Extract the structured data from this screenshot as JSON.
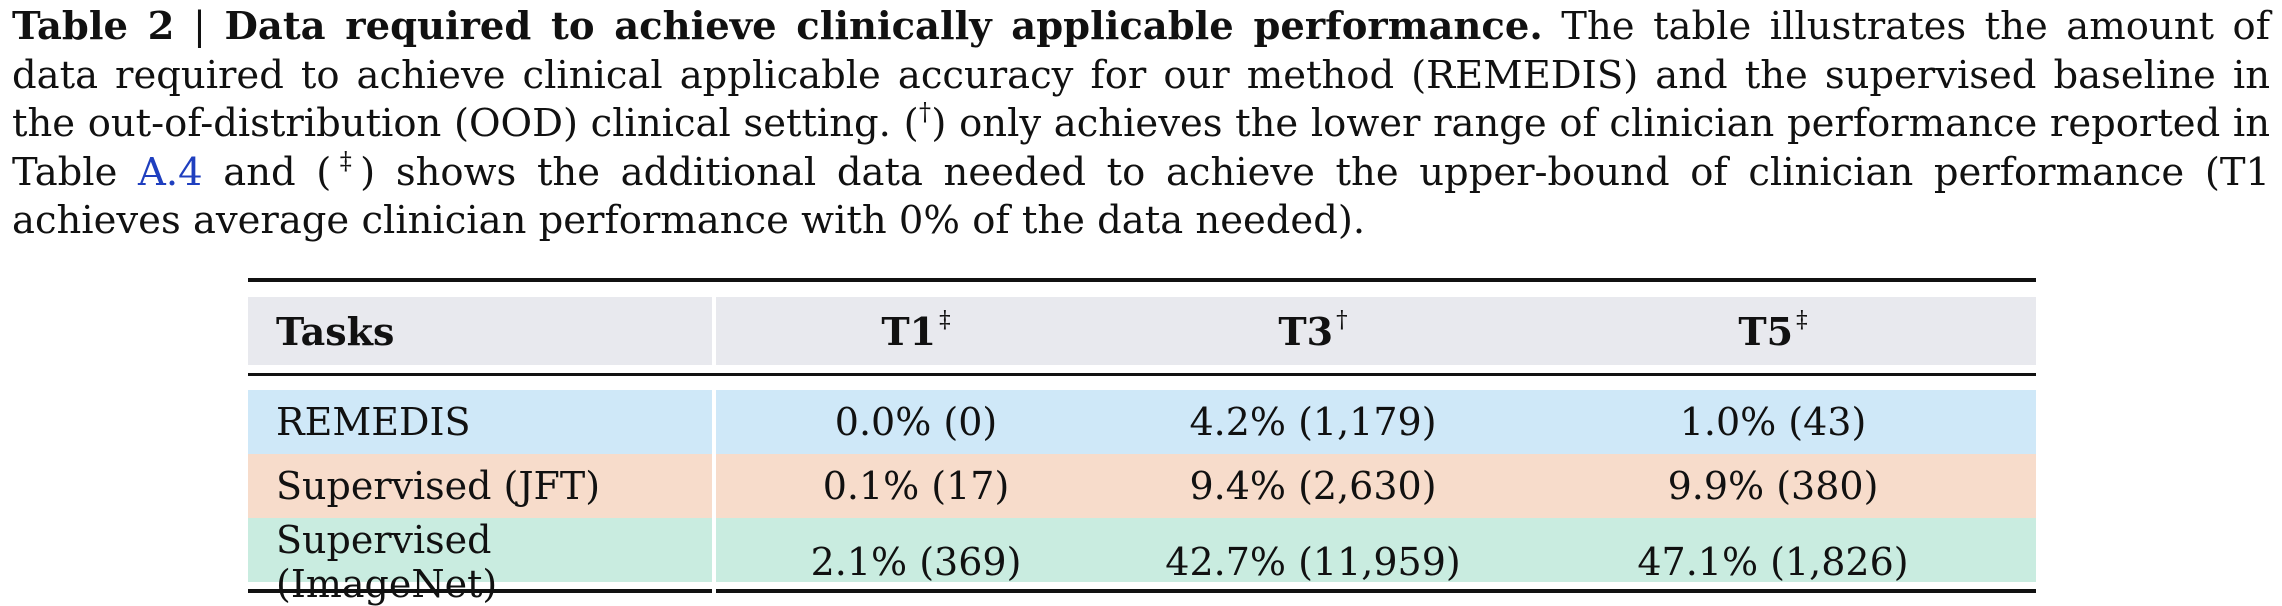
{
  "caption": {
    "label": "Table 2",
    "separator": "|",
    "title": "Data required to achieve clinically applicable performance.",
    "text_1": "The table illustrates the amount of data required to achieve clinical applicable accuracy for our method (REMEDIS) and the supervised baseline in the out-of-distribution (OOD) clinical setting. (",
    "dagger": "†",
    "text_2": ") only achieves the lower range of clinician performance reported in Table ",
    "link": "A.4",
    "text_3": " and (",
    "double_dagger": "‡",
    "text_4": ") shows the additional data needed to achieve the upper-bound of clinician performance (T1 achieves average clinician performance with 0% of the data needed)."
  },
  "table": {
    "headers": [
      {
        "label": "Tasks",
        "mark": ""
      },
      {
        "label": "T1",
        "mark": "‡"
      },
      {
        "label": "T3",
        "mark": "†"
      },
      {
        "label": "T5",
        "mark": "‡"
      }
    ],
    "rows": [
      {
        "name": "REMEDIS",
        "t1": "0.0% (0)",
        "t3": "4.2% (1,179)",
        "t5": "1.0% (43)",
        "color": "#cfe8f8"
      },
      {
        "name": "Supervised (JFT)",
        "t1": "0.1% (17)",
        "t3": "9.4% (2,630)",
        "t5": "9.9% (380)",
        "color": "#f7dccb"
      },
      {
        "name": "Supervised (ImageNet)",
        "t1": "2.1% (369)",
        "t3": "42.7% (11,959)",
        "t5": "47.1% (1,826)",
        "color": "#c9ece0"
      }
    ],
    "header_color": "#e8e9ee"
  }
}
